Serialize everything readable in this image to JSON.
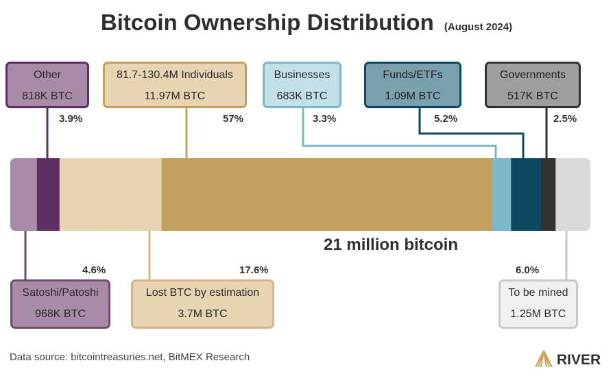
{
  "chart_data": {
    "type": "bar",
    "orientation": "horizontal-stacked",
    "title": "Bitcoin Ownership Distribution",
    "subtitle": "(August 2024)",
    "total_label": "21 million bitcoin",
    "total_btc_millions": 21,
    "segments": [
      {
        "name": "Satoshi/Patoshi",
        "amount": "968K BTC",
        "percent_label": "4.6%",
        "percent": 4.6,
        "color": "#a98ba7",
        "border": "#6f4d70",
        "text": "#2b2b2b"
      },
      {
        "name": "Other",
        "amount": "818K BTC",
        "percent_label": "3.9%",
        "percent": 3.9,
        "color": "#5e2f62",
        "border": "#5e2f62",
        "text": "#2b2b2b"
      },
      {
        "name": "Lost BTC by estimation",
        "amount": "3.7M BTC",
        "percent_label": "17.6%",
        "percent": 17.6,
        "color": "#e8d3b3",
        "border": "#d3b688",
        "text": "#2b2b2b"
      },
      {
        "name": "81.7-130.4M Individuals",
        "amount": "11.97M BTC",
        "percent_label": "57%",
        "percent": 57,
        "color": "#c2a15f",
        "border": "#c2a15f",
        "text": "#2b2b2b"
      },
      {
        "name": "Businesses",
        "amount": "683K BTC",
        "percent_label": "3.3%",
        "percent": 3.3,
        "color": "#7eb7c7",
        "border": "#7eb7c7",
        "text": "#2b2b2b"
      },
      {
        "name": "Funds/ETFs",
        "amount": "1.09M BTC",
        "percent_label": "5.2%",
        "percent": 5.2,
        "color": "#0b4a61",
        "border": "#0b4a61",
        "text": "#1a1a1a"
      },
      {
        "name": "Governments",
        "amount": "517K BTC",
        "percent_label": "2.5%",
        "percent": 2.5,
        "color": "#313131",
        "border": "#313131",
        "text": "#2b2b2b"
      },
      {
        "name": "To be mined",
        "amount": "1.25M BTC",
        "percent_label": "6.0%",
        "percent": 6.0,
        "color": "#d9d9d9",
        "border": "#c8c8c8",
        "text": "#2b2b2b"
      }
    ]
  },
  "footer": {
    "source": "Data source: bitcointreasuries.net, BitMEX Research",
    "brand": "RIVER"
  }
}
